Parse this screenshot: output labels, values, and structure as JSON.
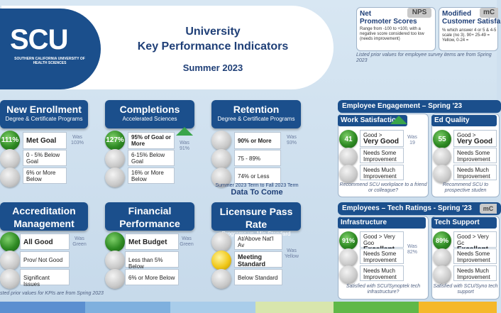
{
  "header": {
    "line1": "University",
    "line2": "Key Performance Indicators",
    "term": "Summer 2023"
  },
  "logo": {
    "letters": "SCU",
    "subtitle": "SOUTHERN CALIFORNIA UNIVERSITY OF HEALTH SCIENCES"
  },
  "nps_box": {
    "title1": "Net",
    "title2": "Promoter Scores",
    "tag": "NPS",
    "desc": "Range from -100 to +100, with a negative score considered too low (needs improvement)"
  },
  "csat_box": {
    "title1": "Modified",
    "title2": "Customer Satisfa",
    "tag": "mC",
    "desc": "% which answer 4 or 5 & 4-5 scale (no 3). 90+ 25-49 = Yellow, 0-24 ="
  },
  "prior_note_right": "Listed prior values for employee survey items are from Spring 2023",
  "prior_note_left": "sted prior values for KPIs are from Spring 2023",
  "enrollment": {
    "title": "New Enrollment",
    "sub": "Degree & Certificate Programs",
    "pct": "111%",
    "r1": "Met Goal",
    "r2": "0 - 5% Below Goal",
    "r3": "6% or More Below",
    "was": "Was 103%"
  },
  "completions": {
    "title": "Completions",
    "sub": "Accelerated Sciences",
    "pct": "127%",
    "r1": "95% of Goal or More",
    "r2": "6-15% Below Goal",
    "r3": "16% or More Below",
    "was": "Was 91%"
  },
  "retention": {
    "title": "Retention",
    "sub": "Degree & Certificate Programs",
    "r1": "90% or More",
    "r2": "75 - 89%",
    "r3": "74% or Less",
    "was": "Was 93%",
    "footnote": "Summer 2023 Term to Fall 2023 Term",
    "data_to_come": "Data To Come"
  },
  "accreditation": {
    "title1": "Accreditation",
    "title2": "Management",
    "r1": "All Good",
    "r2": "Prov/ Not Good",
    "r3": "Significant Issues",
    "was": "Was Green"
  },
  "financial": {
    "title1": "Financial",
    "title2": "Performance",
    "r1": "Met Budget",
    "r2": "Less than 5% Below",
    "r3": "6% or More Below",
    "was": "Was Green"
  },
  "licensure": {
    "title": "Licensure Pass Rate",
    "sub": "Programs vs. Min Standard",
    "r1": "At/Above Nat'l Av",
    "r2": "Meeting Standard",
    "r3": "Below Standard",
    "was": "Was Yellow"
  },
  "engagement": {
    "head": "Employee Engagement – Spring '23",
    "work": {
      "title": "Work Satisfaction",
      "score": "41",
      "r1a": "Good >",
      "r1b": "Very Good",
      "r2": "Needs Some Improvement",
      "r3": "Needs Much Improvement",
      "was": "Was 19",
      "note": "Recommend SCU workplace to a friend or colleague?"
    },
    "ed": {
      "title": "Ed Quality",
      "score": "55",
      "r1a": "Good >",
      "r1b": "Very Good",
      "r2": "Needs Some Improvement",
      "r3": "Needs Much Improvement",
      "note": "Recommend SCU to prospective studen"
    }
  },
  "tech": {
    "head": "Employees – Tech Ratings - Spring '23",
    "tag": "mC",
    "infra": {
      "title": "Infrastructure",
      "score": "91%",
      "r1a": "Good > Very Goo",
      "r1b": "Excellent",
      "r2": "Needs Some Improvement",
      "r3": "Needs Much Improvement",
      "was": "Was 82%",
      "note": "Satisfied with SCU/Synoptek tech infrastructure?"
    },
    "support": {
      "title": "Tech Support",
      "score": "89%",
      "r1a": "Good > Very Gc",
      "r1b": "Excellent",
      "r2": "Needs Some Improvement",
      "r3": "Needs Much Improvement",
      "note": "Satisfied with SCU/Syno tech support"
    }
  }
}
